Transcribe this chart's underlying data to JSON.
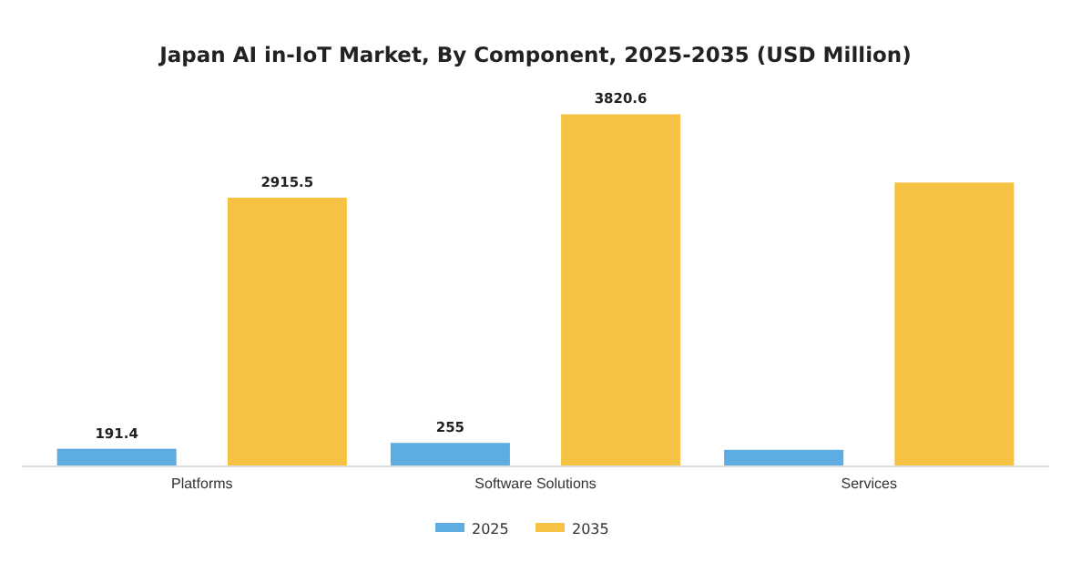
{
  "chart_data": {
    "type": "bar",
    "title": "Japan AI in-IoT Market, By Component, 2025-2035 (USD Million)",
    "categories": [
      "Platforms",
      "Software Solutions",
      "Services"
    ],
    "series": [
      {
        "name": "2025",
        "color": "#5dade2",
        "values": [
          191.4,
          255,
          180
        ],
        "value_labels": [
          "191.4",
          "255",
          null
        ]
      },
      {
        "name": "2035",
        "color": "#f5c243",
        "values": [
          2915.5,
          3820.6,
          3080
        ],
        "value_labels": [
          "2915.5",
          "3820.6",
          null
        ]
      }
    ],
    "legend": "bottom",
    "grid": false
  }
}
